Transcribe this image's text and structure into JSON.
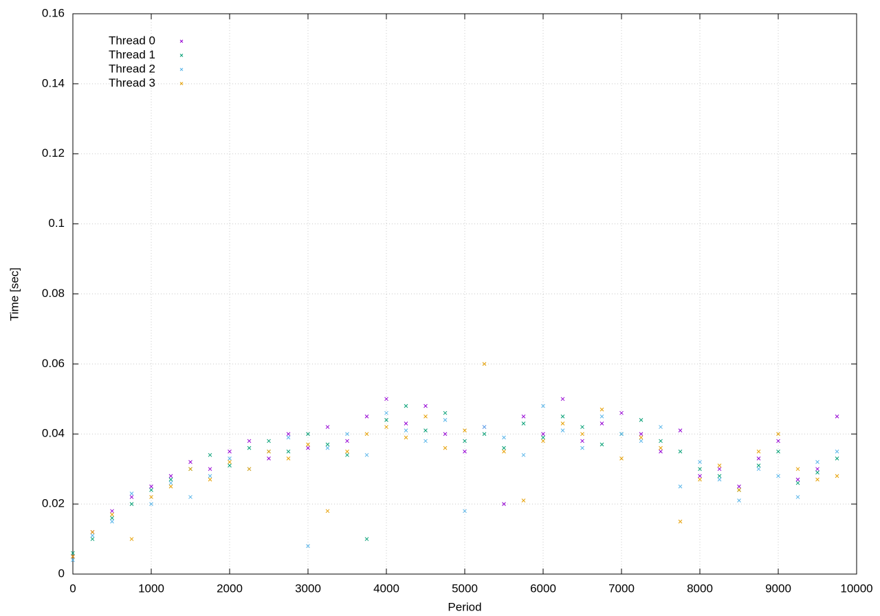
{
  "chart_data": {
    "type": "scatter",
    "xlabel": "Period",
    "ylabel": "Time [sec]",
    "xlim": [
      0,
      10000
    ],
    "ylim": [
      0,
      0.16
    ],
    "xticks": [
      0,
      1000,
      2000,
      3000,
      4000,
      5000,
      6000,
      7000,
      8000,
      9000,
      10000
    ],
    "yticks": [
      0,
      0.02,
      0.04,
      0.06,
      0.08,
      0.1,
      0.12,
      0.14,
      0.16
    ],
    "grid": true,
    "legend": "top-left",
    "x": [
      0,
      250,
      500,
      750,
      1000,
      1250,
      1500,
      1750,
      2000,
      2250,
      2500,
      2750,
      3000,
      3250,
      3500,
      3750,
      4000,
      4250,
      4500,
      4750,
      5000,
      5250,
      5500,
      5750,
      6000,
      6250,
      6500,
      6750,
      7000,
      7250,
      7500,
      7750,
      8000,
      8250,
      8500,
      8750,
      9000,
      9250,
      9500,
      9750
    ],
    "series": [
      {
        "name": "Thread 0",
        "color": "#9400d3",
        "values": [
          0.005,
          0.012,
          0.018,
          0.022,
          0.025,
          0.028,
          0.032,
          0.03,
          0.035,
          0.038,
          0.033,
          0.04,
          0.036,
          0.042,
          0.038,
          0.045,
          0.05,
          0.043,
          0.048,
          0.04,
          0.035,
          0.042,
          0.02,
          0.045,
          0.04,
          0.05,
          0.038,
          0.043,
          0.046,
          0.04,
          0.035,
          0.041,
          0.028,
          0.03,
          0.025,
          0.033,
          0.038,
          0.027,
          0.03,
          0.045
        ]
      },
      {
        "name": "Thread 1",
        "color": "#009e73",
        "values": [
          0.006,
          0.01,
          0.016,
          0.02,
          0.024,
          0.027,
          0.03,
          0.034,
          0.031,
          0.036,
          0.038,
          0.035,
          0.04,
          0.037,
          0.034,
          0.01,
          0.044,
          0.048,
          0.041,
          0.046,
          0.038,
          0.04,
          0.036,
          0.043,
          0.039,
          0.045,
          0.042,
          0.037,
          0.04,
          0.044,
          0.038,
          0.035,
          0.03,
          0.028,
          0.024,
          0.031,
          0.035,
          0.026,
          0.029,
          0.033
        ]
      },
      {
        "name": "Thread 2",
        "color": "#56b4e9",
        "values": [
          0.004,
          0.011,
          0.015,
          0.023,
          0.02,
          0.026,
          0.022,
          0.028,
          0.033,
          0.03,
          0.035,
          0.039,
          0.008,
          0.036,
          0.04,
          0.034,
          0.046,
          0.041,
          0.038,
          0.044,
          0.018,
          0.042,
          0.039,
          0.034,
          0.048,
          0.041,
          0.036,
          0.045,
          0.04,
          0.038,
          0.042,
          0.025,
          0.032,
          0.027,
          0.021,
          0.03,
          0.028,
          0.022,
          0.032,
          0.035
        ]
      },
      {
        "name": "Thread 3",
        "color": "#e69f00",
        "values": [
          0.005,
          0.012,
          0.017,
          0.01,
          0.022,
          0.025,
          0.03,
          0.027,
          0.032,
          0.03,
          0.035,
          0.033,
          0.037,
          0.018,
          0.035,
          0.04,
          0.042,
          0.039,
          0.045,
          0.036,
          0.041,
          0.06,
          0.035,
          0.021,
          0.038,
          0.043,
          0.04,
          0.047,
          0.033,
          0.039,
          0.036,
          0.015,
          0.027,
          0.031,
          0.024,
          0.035,
          0.04,
          0.03,
          0.027,
          0.028
        ]
      }
    ]
  }
}
